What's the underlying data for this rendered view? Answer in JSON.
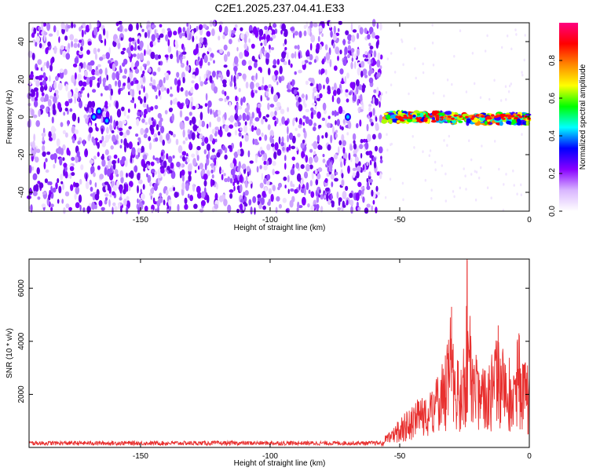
{
  "title": "C2E1.2025.237.04.41.E33",
  "chart_data": [
    {
      "type": "heatmap",
      "xlabel": "Height of straight line (km)",
      "ylabel": "Frequency (Hz)",
      "xlim": [
        -193,
        0
      ],
      "ylim": [
        -50,
        50
      ],
      "xticks": [
        -150,
        -100,
        -50,
        0
      ],
      "yticks": [
        -40,
        -20,
        0,
        20,
        40
      ],
      "noise_region_x": [
        -193,
        -57
      ],
      "signal_region_x": [
        -56,
        0
      ],
      "signal_center_hz": 0,
      "colorbar": {
        "label": "Normalized spectral amplitude",
        "range": [
          0.0,
          1.0
        ],
        "ticks": [
          0.0,
          0.2,
          0.4,
          0.6,
          0.8
        ],
        "colormap": [
          "#ffffff",
          "#d9b6ff",
          "#8800ff",
          "#0000ff",
          "#00ffff",
          "#00ff00",
          "#ffff00",
          "#ff8800",
          "#ff0000",
          "#ff0080"
        ]
      }
    },
    {
      "type": "line",
      "xlabel": "Height of straight line (km)",
      "ylabel": "SNR (10 * v/v)",
      "xlim": [
        -193,
        0
      ],
      "ylim": [
        0,
        7100
      ],
      "xticks": [
        -150,
        -100,
        -50,
        0
      ],
      "yticks": [
        2000,
        4000,
        6000
      ],
      "color": "#e8302f",
      "baseline_level": 180,
      "envelope": [
        {
          "x": -193,
          "y": 180
        },
        {
          "x": -57,
          "y": 180
        },
        {
          "x": -55,
          "y": 600
        },
        {
          "x": -50,
          "y": 1100
        },
        {
          "x": -45,
          "y": 1700
        },
        {
          "x": -40,
          "y": 2200
        },
        {
          "x": -35,
          "y": 2700
        },
        {
          "x": -32,
          "y": 4000
        },
        {
          "x": -30,
          "y": 5300
        },
        {
          "x": -28,
          "y": 3400
        },
        {
          "x": -25,
          "y": 3800
        },
        {
          "x": -24,
          "y": 7100
        },
        {
          "x": -22,
          "y": 3600
        },
        {
          "x": -18,
          "y": 3300
        },
        {
          "x": -15,
          "y": 3400
        },
        {
          "x": -12,
          "y": 4600
        },
        {
          "x": -10,
          "y": 3700
        },
        {
          "x": -6,
          "y": 3900
        },
        {
          "x": -4,
          "y": 4300
        },
        {
          "x": -2,
          "y": 3500
        },
        {
          "x": 0,
          "y": 3100
        }
      ]
    }
  ]
}
